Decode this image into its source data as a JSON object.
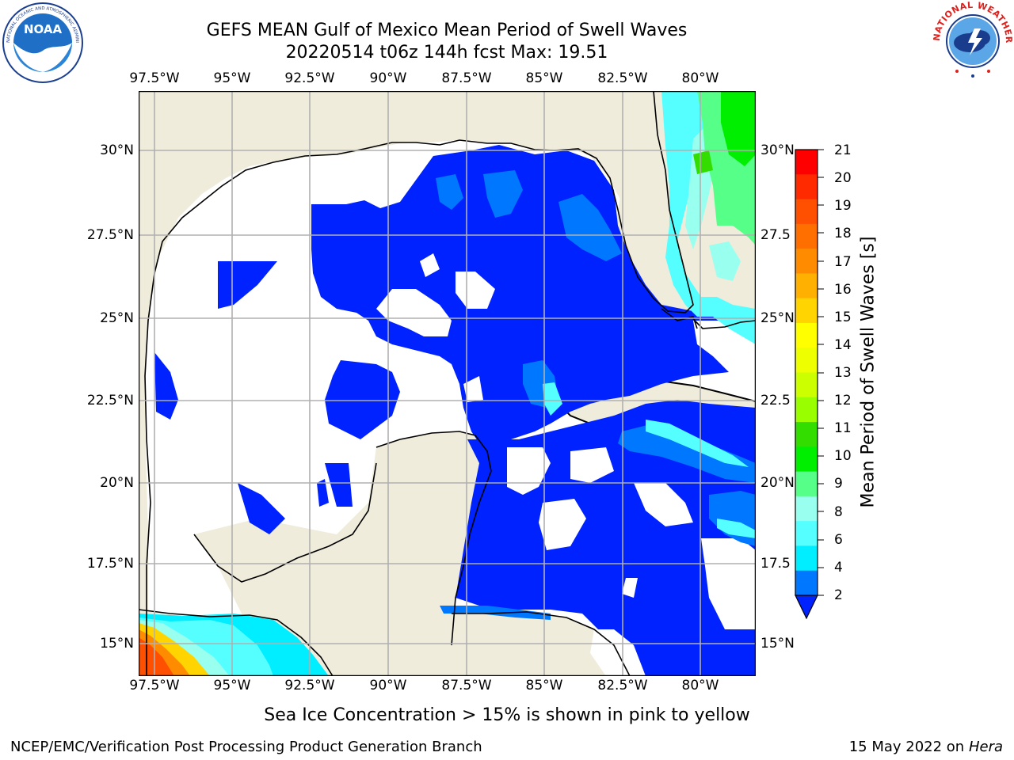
{
  "header": {
    "title": "GEFS MEAN Gulf of Mexico Mean Period of Swell Waves",
    "subtitle": "20220514 t06z 144h fcst   Max: 19.51"
  },
  "logos": {
    "noaa": {
      "text": "NOAA",
      "ring_text": "NATIONAL OCEANIC AND ATMOSPHERIC ADMINISTRATION · U.S. DEPARTMENT OF COMMERCE"
    },
    "nws": {
      "ring_text": "NATIONAL WEATHER SERVICE"
    }
  },
  "map": {
    "lon_labels": [
      "97.5°W",
      "95°W",
      "92.5°W",
      "90°W",
      "87.5°W",
      "85°W",
      "82.5°W",
      "80°W"
    ],
    "lat_labels": [
      "30°N",
      "27.5°N",
      "25°N",
      "22.5°N",
      "20°N",
      "17.5°N",
      "15°N"
    ],
    "right_lat_labels": [
      "30°N",
      "27.5",
      "25°N",
      "22.5",
      "20°N",
      "17.5",
      "15°N"
    ],
    "land_color": "#efecdc",
    "ocean_background": "#ffffff",
    "grid": true
  },
  "colorbar": {
    "label": "Mean Period of Swell Waves [s]",
    "ticks": [
      "21",
      "20",
      "19",
      "18",
      "17",
      "16",
      "15",
      "14",
      "13",
      "12",
      "11",
      "10",
      "9",
      "8",
      "6",
      "4",
      "2"
    ],
    "extend": "min",
    "colors": [
      "#ff0000",
      "#ff2a00",
      "#ff4f00",
      "#ff6f00",
      "#ff8c00",
      "#ffb000",
      "#ffd400",
      "#ffff00",
      "#eeff00",
      "#ccff00",
      "#99ff00",
      "#33dd00",
      "#00ee00",
      "#55ff88",
      "#99ffee",
      "#55ffff",
      "#00eeff",
      "#0077ff"
    ],
    "under_color": "#0022ff"
  },
  "footer": {
    "ice_note": "Sea Ice Concentration > 15% is shown in pink to yellow",
    "left": "NCEP/EMC/Verification Post Processing Product Generation Branch",
    "right_prefix": "15 May 2022 on",
    "right_host": "Hera"
  }
}
